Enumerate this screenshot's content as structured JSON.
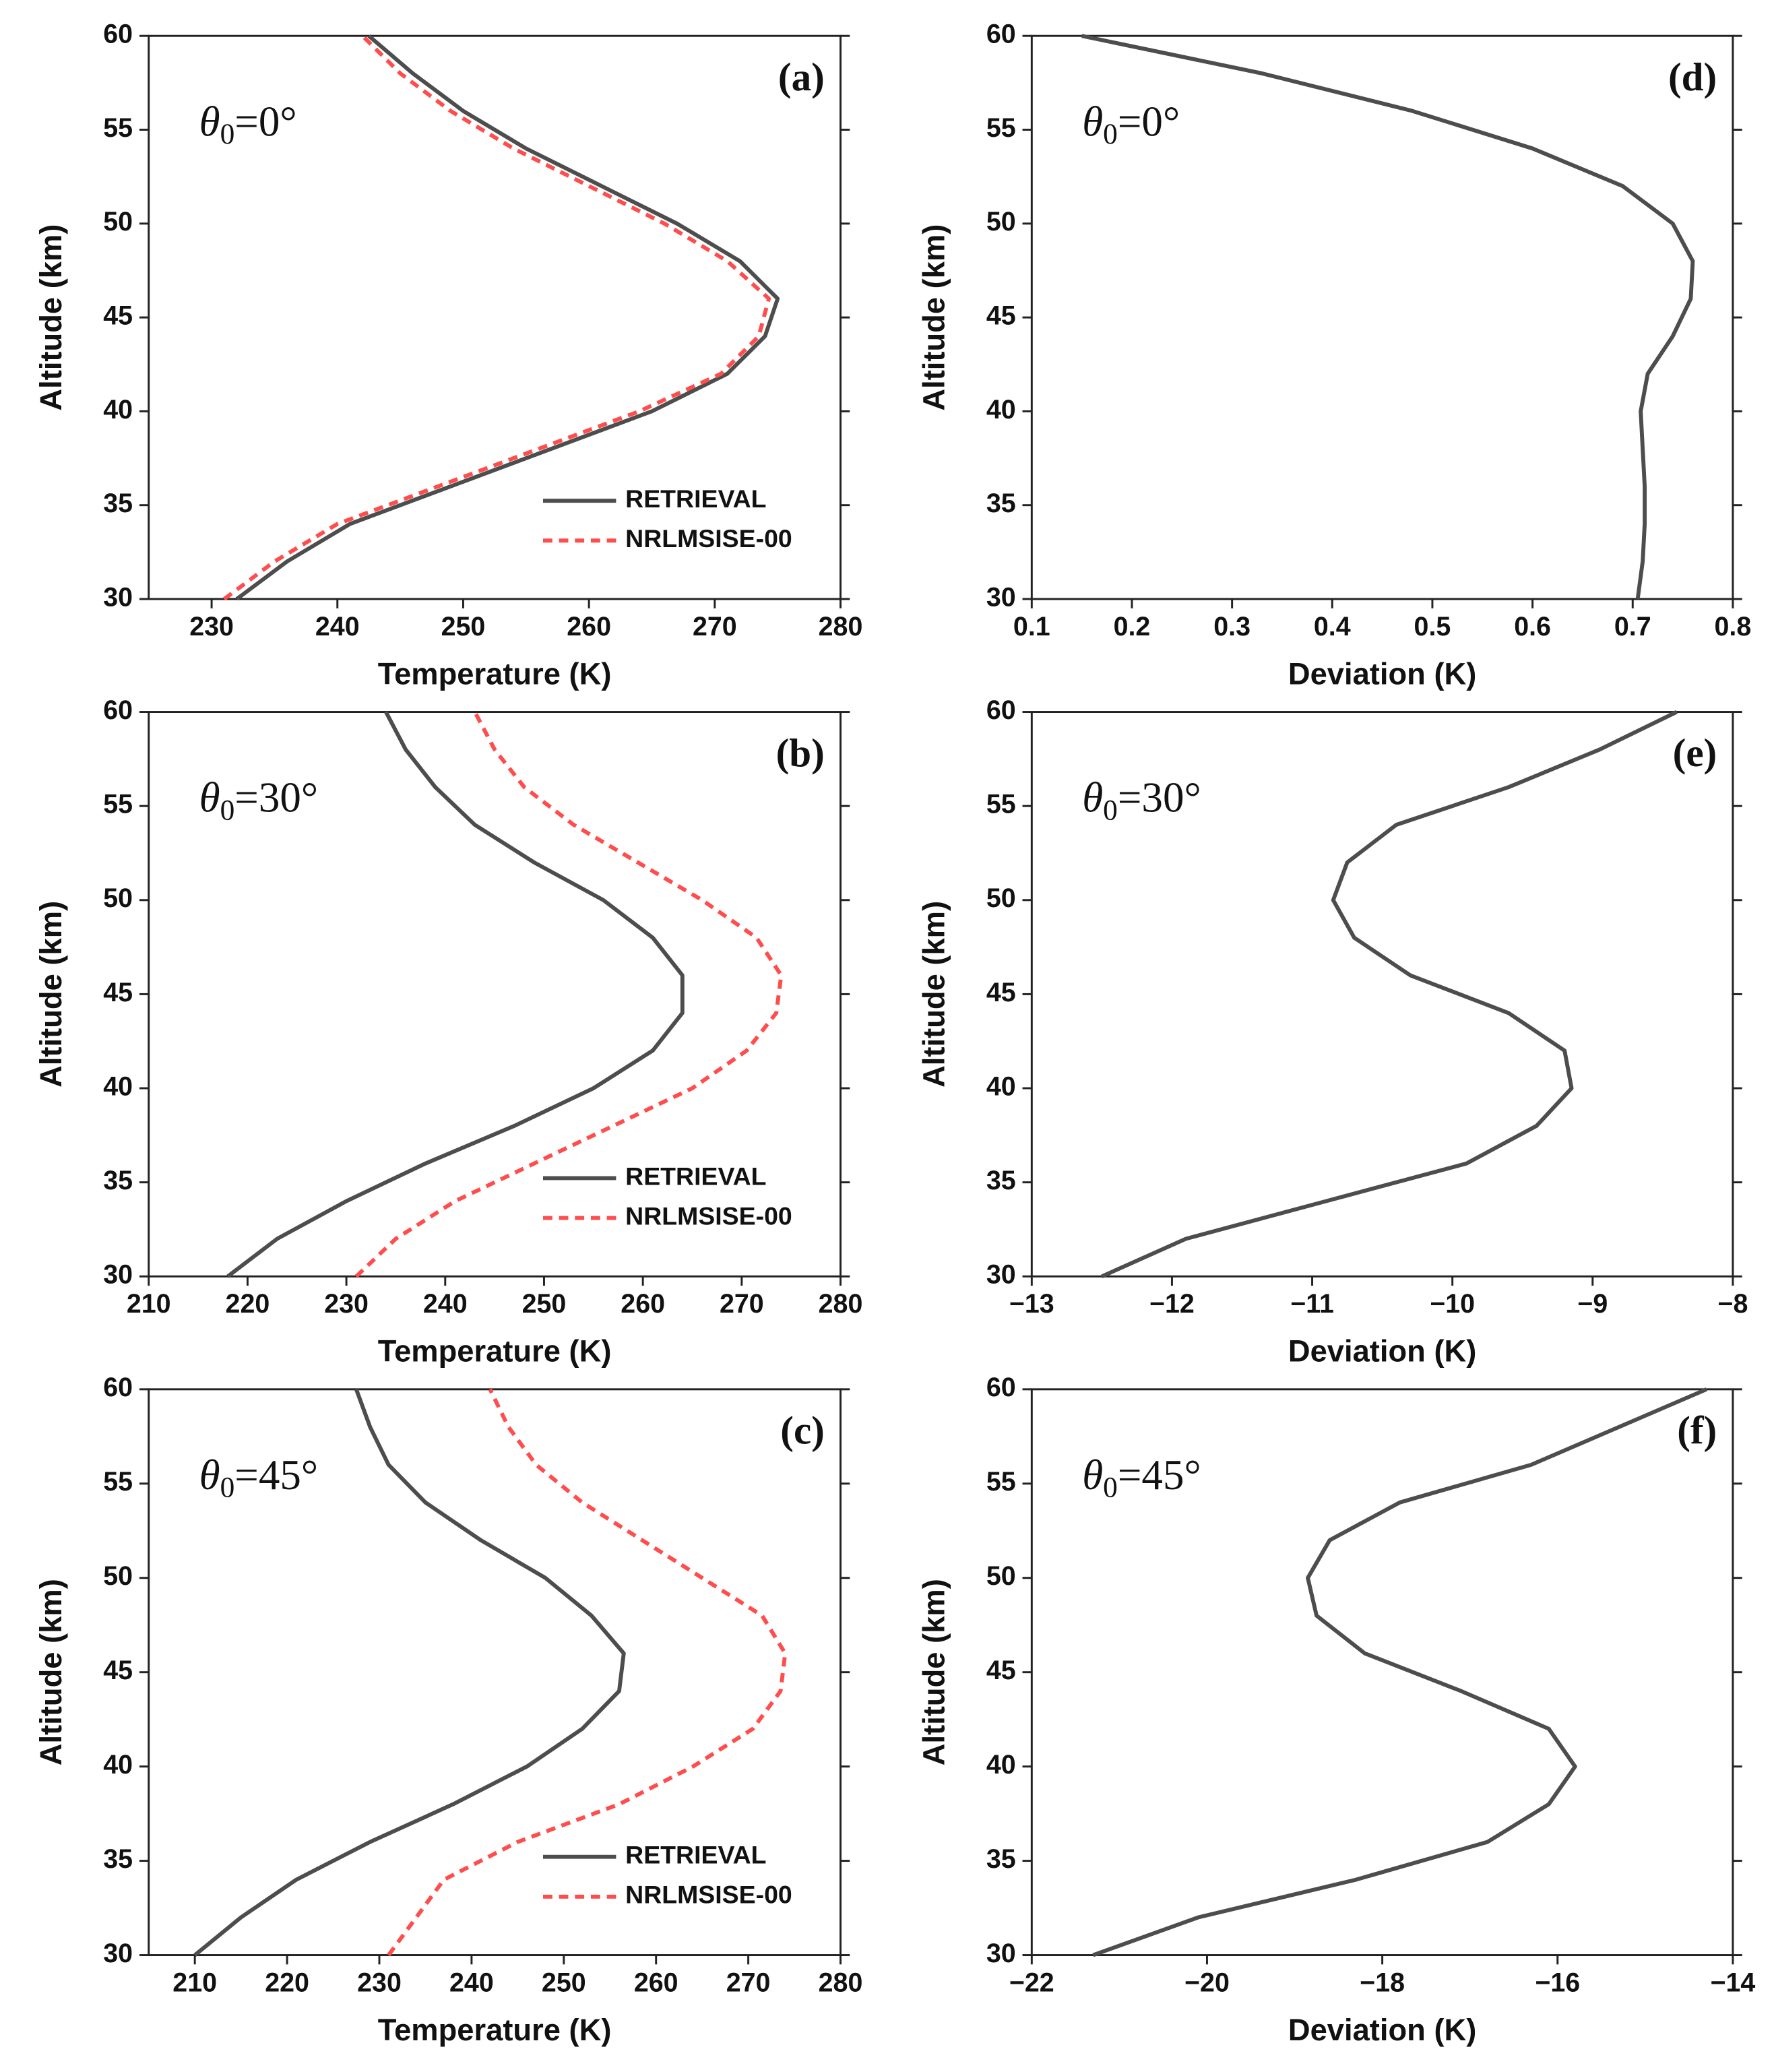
{
  "chart_data": [
    {
      "type": "line",
      "panel_label": "(a)",
      "annotation_symbol": "θ",
      "annotation_sub": "0",
      "annotation_value": "=0°",
      "xlabel": "Temperature (K)",
      "ylabel": "Altitude (km)",
      "y": [
        30,
        32,
        34,
        36,
        38,
        40,
        42,
        44,
        46,
        48,
        50,
        52,
        54,
        56,
        58,
        60
      ],
      "series": [
        {
          "name": "RETRIEVAL",
          "color": "#4d4d4d",
          "dashed": false,
          "values": [
            232,
            236,
            241,
            249,
            257,
            265,
            271,
            274,
            275,
            272,
            267,
            261,
            255,
            250,
            246,
            242.5
          ]
        },
        {
          "name": "NRLMSISE-00",
          "color": "#ff4d4d",
          "dashed": true,
          "values": [
            231,
            235,
            240,
            248,
            256,
            264,
            270.5,
            273.5,
            274.3,
            271,
            266,
            260,
            254,
            249,
            245,
            242
          ]
        }
      ],
      "xlim": [
        225,
        280
      ],
      "xticks": [
        230,
        240,
        250,
        260,
        270,
        280
      ],
      "ylim": [
        30,
        60
      ],
      "yticks": [
        30,
        35,
        40,
        45,
        50,
        55,
        60
      ]
    },
    {
      "type": "line",
      "panel_label": "(d)",
      "annotation_symbol": "θ",
      "annotation_sub": "0",
      "annotation_value": "=0°",
      "xlabel": "Deviation (K)",
      "ylabel": "Altitude (km)",
      "y": [
        30,
        32,
        34,
        36,
        38,
        40,
        42,
        44,
        46,
        48,
        50,
        52,
        54,
        56,
        58,
        60
      ],
      "series": [
        {
          "color": "#4d4d4d",
          "dashed": false,
          "values": [
            0.705,
            0.71,
            0.712,
            0.712,
            0.71,
            0.708,
            0.715,
            0.74,
            0.758,
            0.76,
            0.74,
            0.69,
            0.6,
            0.48,
            0.33,
            0.15
          ]
        }
      ],
      "xlim": [
        0.1,
        0.8
      ],
      "xticks": [
        0.1,
        0.2,
        0.3,
        0.4,
        0.5,
        0.6,
        0.7,
        0.8
      ],
      "ylim": [
        30,
        60
      ],
      "yticks": [
        30,
        35,
        40,
        45,
        50,
        55,
        60
      ]
    },
    {
      "type": "line",
      "panel_label": "(b)",
      "annotation_symbol": "θ",
      "annotation_sub": "0",
      "annotation_value": "=30°",
      "xlabel": "Temperature (K)",
      "ylabel": "Altitude (km)",
      "y": [
        30,
        32,
        34,
        36,
        38,
        40,
        42,
        44,
        46,
        48,
        50,
        52,
        54,
        56,
        58,
        60
      ],
      "series": [
        {
          "name": "RETRIEVAL",
          "color": "#4d4d4d",
          "dashed": false,
          "values": [
            218,
            223,
            230,
            238,
            247,
            255,
            261,
            264,
            264,
            261,
            256,
            249,
            243,
            239,
            236,
            234
          ]
        },
        {
          "name": "NRLMSISE-00",
          "color": "#ff4d4d",
          "dashed": true,
          "values": [
            231,
            235,
            241,
            249,
            257,
            265,
            270.5,
            273.5,
            274,
            271.5,
            266,
            259.5,
            253,
            248,
            245,
            243
          ]
        }
      ],
      "xlim": [
        210,
        280
      ],
      "xticks": [
        210,
        220,
        230,
        240,
        250,
        260,
        270,
        280
      ],
      "ylim": [
        30,
        60
      ],
      "yticks": [
        30,
        35,
        40,
        45,
        50,
        55,
        60
      ]
    },
    {
      "type": "line",
      "panel_label": "(e)",
      "annotation_symbol": "θ",
      "annotation_sub": "0",
      "annotation_value": "=30°",
      "xlabel": "Deviation (K)",
      "ylabel": "Altitude (km)",
      "y": [
        30,
        32,
        34,
        36,
        38,
        40,
        42,
        44,
        46,
        48,
        50,
        52,
        54,
        56,
        58,
        60
      ],
      "series": [
        {
          "color": "#4d4d4d",
          "dashed": false,
          "values": [
            -12.5,
            -11.9,
            -10.9,
            -9.9,
            -9.4,
            -9.15,
            -9.2,
            -9.6,
            -10.3,
            -10.7,
            -10.85,
            -10.75,
            -10.4,
            -9.6,
            -8.95,
            -8.4
          ]
        }
      ],
      "xlim": [
        -13,
        -8
      ],
      "xticks": [
        {
          "value": -13,
          "label": "−13"
        },
        {
          "value": -12,
          "label": "−12"
        },
        {
          "value": -11,
          "label": "−11"
        },
        {
          "value": -10,
          "label": "−10"
        },
        {
          "value": -9,
          "label": "−9"
        },
        {
          "value": -8,
          "label": "−8"
        }
      ],
      "ylim": [
        30,
        60
      ],
      "yticks": [
        30,
        35,
        40,
        45,
        50,
        55,
        60
      ]
    },
    {
      "type": "line",
      "panel_label": "(c)",
      "annotation_symbol": "θ",
      "annotation_sub": "0",
      "annotation_value": "=45°",
      "xlabel": "Temperature (K)",
      "ylabel": "Altitude (km)",
      "y": [
        30,
        32,
        34,
        36,
        38,
        40,
        42,
        44,
        46,
        48,
        50,
        52,
        54,
        56,
        58,
        60
      ],
      "series": [
        {
          "name": "RETRIEVAL",
          "color": "#4d4d4d",
          "dashed": false,
          "values": [
            210,
            215,
            221,
            229,
            238,
            246,
            252,
            256,
            256.5,
            253,
            248,
            241,
            235,
            231,
            229,
            227.5
          ]
        },
        {
          "name": "NRLMSISE-00",
          "color": "#ff4d4d",
          "dashed": true,
          "values": [
            231,
            234,
            237,
            245,
            256,
            264,
            270.5,
            273.5,
            274,
            271.5,
            265,
            258.5,
            252,
            247,
            244,
            242
          ]
        }
      ],
      "xlim": [
        205,
        280
      ],
      "xticks": [
        210,
        220,
        230,
        240,
        250,
        260,
        270,
        280
      ],
      "ylim": [
        30,
        60
      ],
      "yticks": [
        30,
        35,
        40,
        45,
        50,
        55,
        60
      ]
    },
    {
      "type": "line",
      "panel_label": "(f)",
      "annotation_symbol": "θ",
      "annotation_sub": "0",
      "annotation_value": "=45°",
      "xlabel": "Deviation (K)",
      "ylabel": "Altitude (km)",
      "y": [
        30,
        32,
        34,
        36,
        38,
        40,
        42,
        44,
        46,
        48,
        50,
        52,
        54,
        56,
        58,
        60
      ],
      "series": [
        {
          "color": "#4d4d4d",
          "dashed": false,
          "values": [
            -21.3,
            -20.1,
            -18.3,
            -16.8,
            -16.1,
            -15.8,
            -16.1,
            -17.1,
            -18.2,
            -18.75,
            -18.85,
            -18.6,
            -17.8,
            -16.3,
            -15.3,
            -14.3
          ]
        }
      ],
      "xlim": [
        -22,
        -14
      ],
      "xticks": [
        {
          "value": -22,
          "label": "−22"
        },
        {
          "value": -20,
          "label": "−20"
        },
        {
          "value": -18,
          "label": "−18"
        },
        {
          "value": -16,
          "label": "−16"
        },
        {
          "value": -14,
          "label": "−14"
        }
      ],
      "ylim": [
        30,
        60
      ],
      "yticks": [
        30,
        35,
        40,
        45,
        50,
        55,
        60
      ]
    }
  ]
}
